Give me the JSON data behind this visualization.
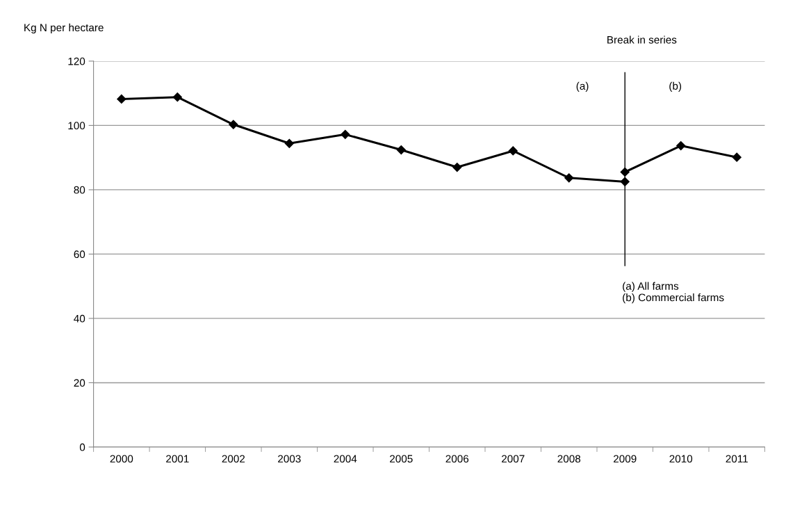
{
  "chart_data": {
    "type": "line",
    "ylabel": "Kg N per hectare",
    "categories": [
      "2000",
      "2001",
      "2002",
      "2003",
      "2004",
      "2005",
      "2006",
      "2007",
      "2008",
      "2009",
      "2010",
      "2011"
    ],
    "series": [
      {
        "color": "#000000",
        "values": [
          108.2,
          108.8,
          100.3,
          94.4,
          97.2,
          92.4,
          87.0,
          92.1,
          83.7,
          82.5,
          null,
          null
        ]
      },
      {
        "color": "#000000",
        "values": [
          null,
          null,
          null,
          null,
          null,
          null,
          null,
          null,
          null,
          85.5,
          93.7,
          90.1
        ]
      }
    ],
    "ylim": [
      0,
      120
    ],
    "yticks": [
      0,
      20,
      40,
      60,
      80,
      100,
      120
    ],
    "grid": "y",
    "legend": false,
    "marker": "diamond",
    "line_style": "solid",
    "ref_lines": [
      {
        "axis": "x",
        "value": "2009",
        "label": "Break in series",
        "color": "#000000"
      }
    ],
    "annotations": [
      "(a)",
      "(b)",
      "(a) All farms\n(b) Commercial farms"
    ]
  }
}
